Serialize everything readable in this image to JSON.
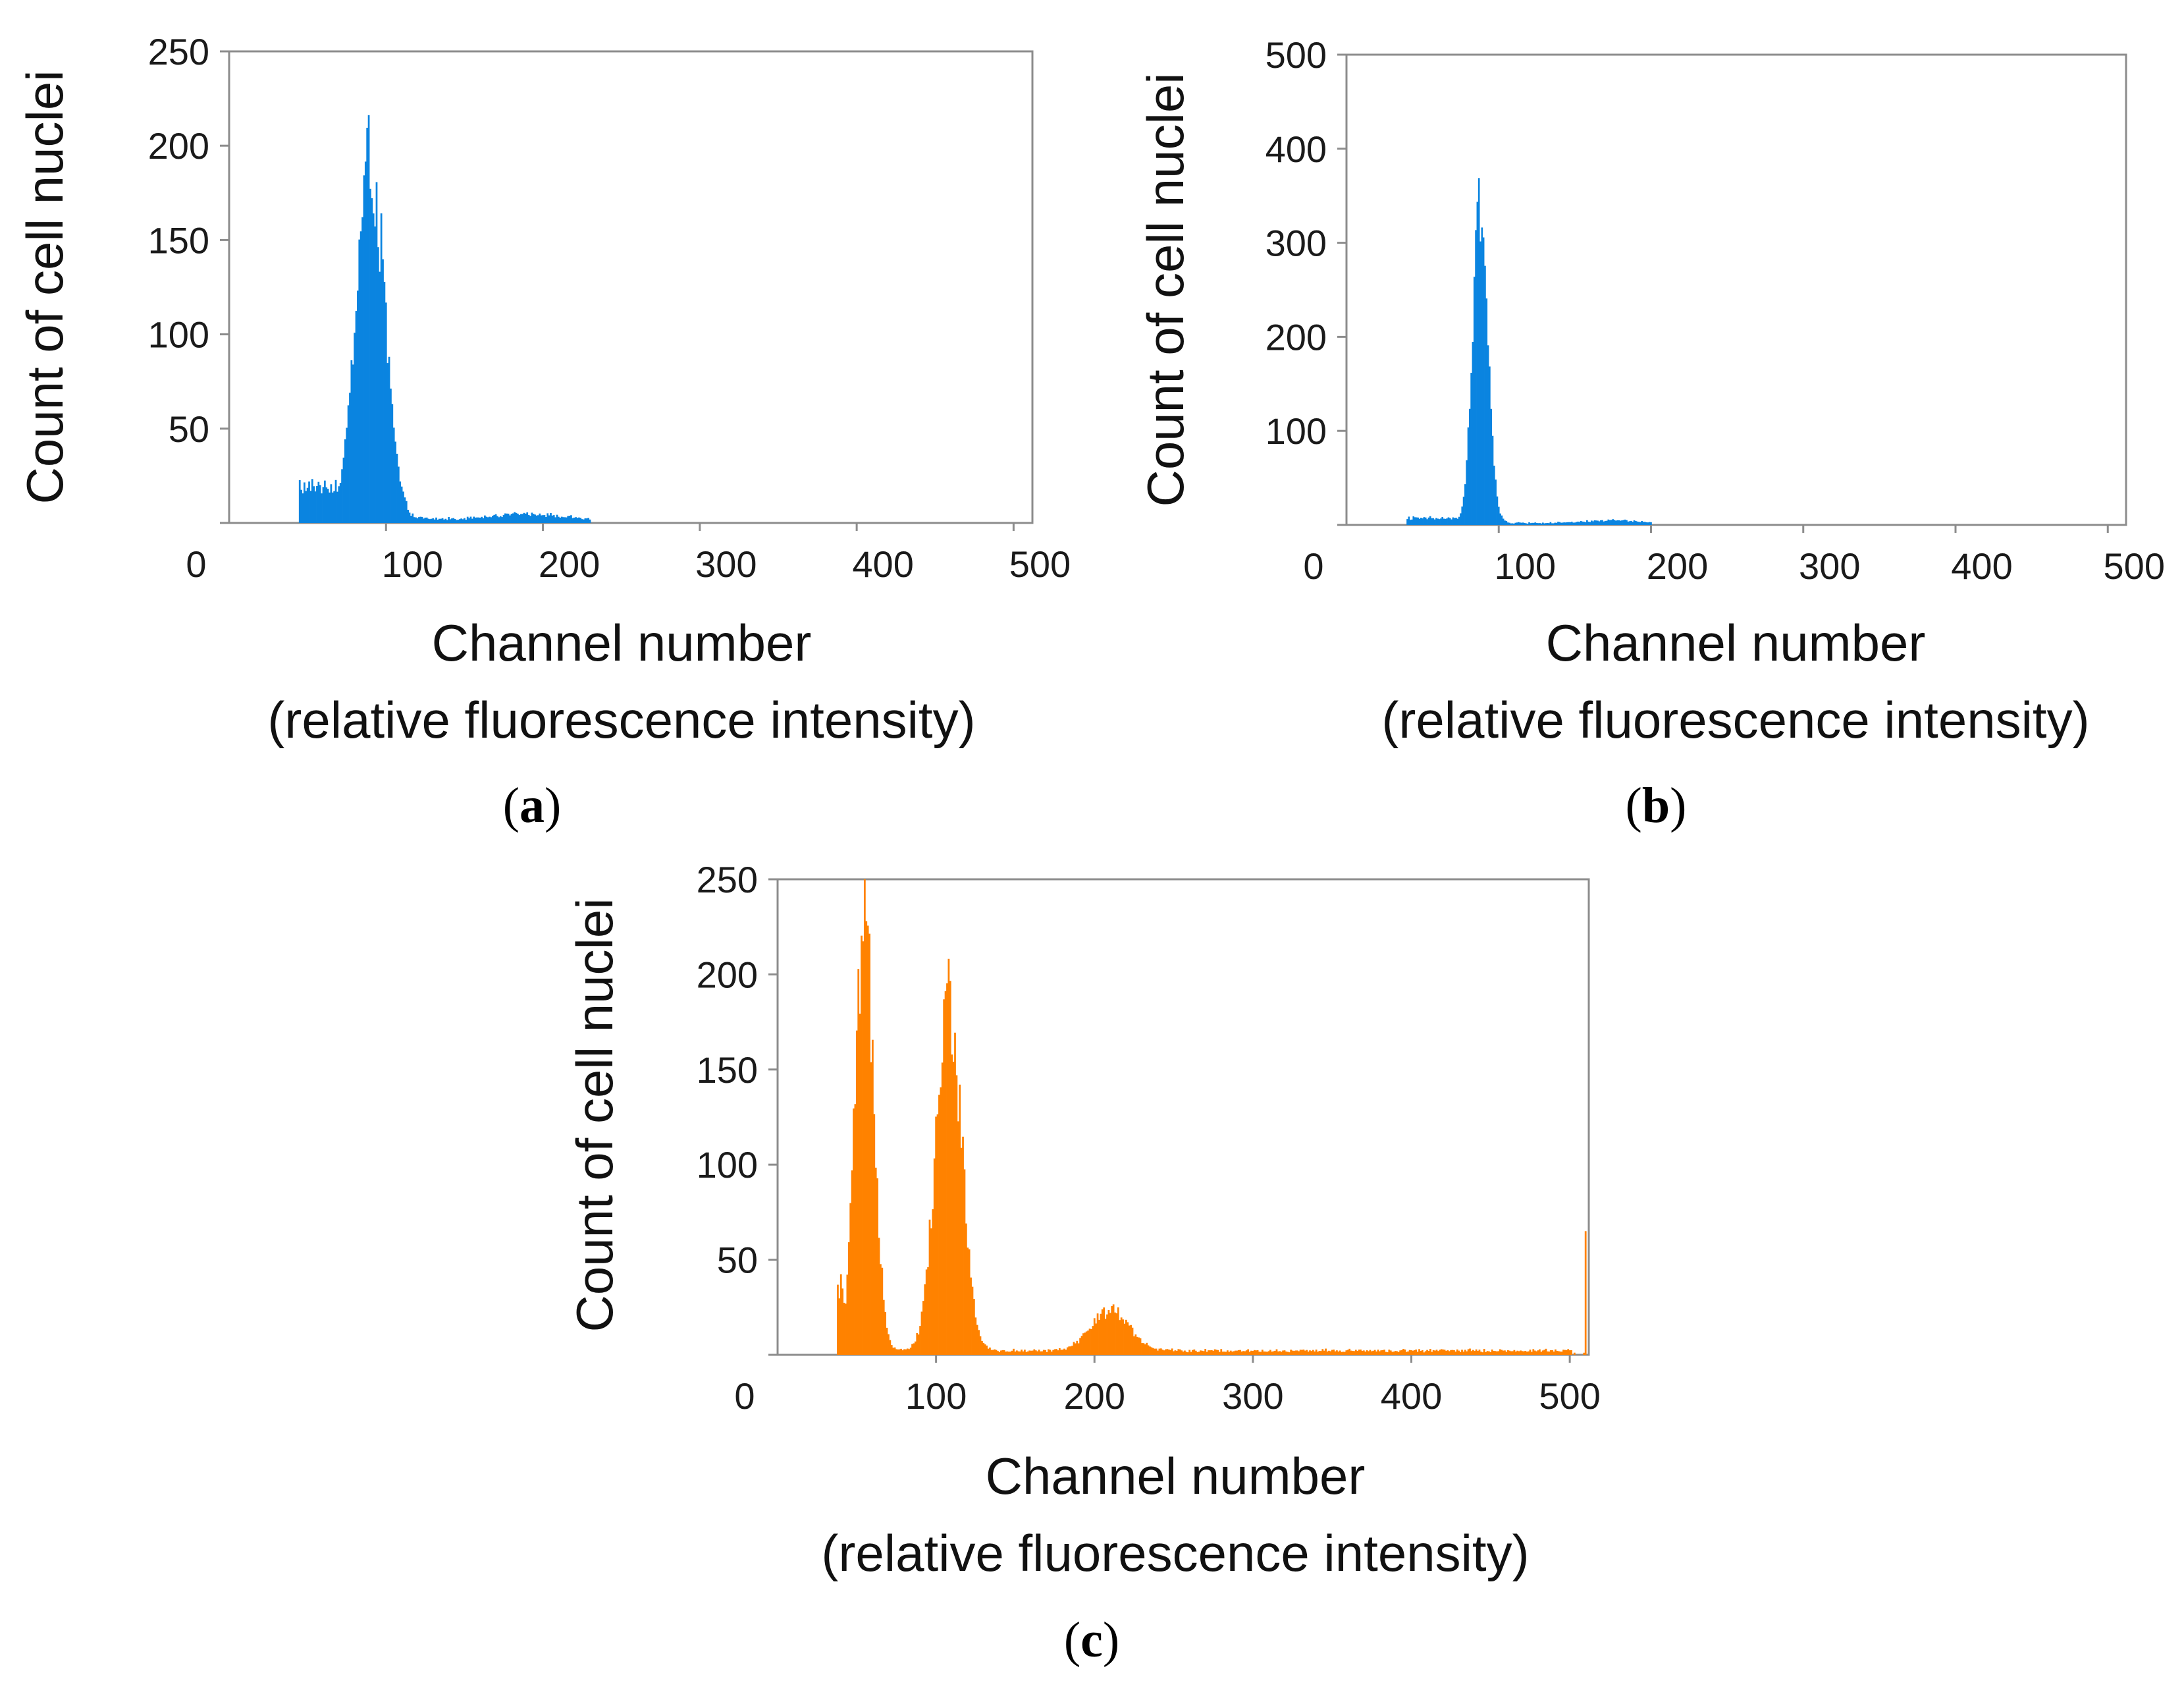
{
  "figure_panels": [
    "a",
    "b",
    "c"
  ],
  "chart_data": [
    {
      "panel": "a",
      "type": "histogram",
      "xlabel": "Channel number",
      "xlabel_line2": "(relative fluorescence intensity)",
      "ylabel": "Count of cell nuclei",
      "xlim": [
        0,
        512
      ],
      "ylim": [
        0,
        250
      ],
      "x_ticks": [
        "0",
        "100",
        "200",
        "300",
        "400",
        "500"
      ],
      "y_ticks": [
        "50",
        "100",
        "150",
        "200",
        "250"
      ],
      "color": "#0a84e0",
      "peaks": [
        {
          "channel": 90,
          "count": 195,
          "sigma": 9
        },
        {
          "channel": 188,
          "count": 3,
          "sigma": 18
        }
      ],
      "baseline": {
        "from": 45,
        "to": 75,
        "count": 18
      },
      "tail_to": 230
    },
    {
      "panel": "b",
      "type": "histogram",
      "xlabel": "Channel number",
      "xlabel_line2": "(relative fluorescence intensity)",
      "ylabel": "Count of cell nuclei",
      "xlim": [
        0,
        512
      ],
      "ylim": [
        0,
        500
      ],
      "x_ticks": [
        "0",
        "100",
        "200",
        "300",
        "400",
        "500"
      ],
      "y_ticks": [
        "100",
        "200",
        "300",
        "400",
        "500"
      ],
      "color": "#0a84e0",
      "peaks": [
        {
          "channel": 88,
          "count": 340,
          "sigma": 5
        },
        {
          "channel": 175,
          "count": 3,
          "sigma": 15
        }
      ],
      "baseline": {
        "from": 40,
        "to": 75,
        "count": 5
      },
      "tail_to": 200
    },
    {
      "panel": "c",
      "type": "histogram",
      "xlabel": "Channel number",
      "xlabel_line2": "(relative fluorescence intensity)",
      "ylabel": "Count of cell nuclei",
      "xlim": [
        0,
        512
      ],
      "ylim": [
        0,
        250
      ],
      "x_ticks": [
        "0",
        "100",
        "200",
        "300",
        "400",
        "500"
      ],
      "y_ticks": [
        "50",
        "100",
        "150",
        "200",
        "250"
      ],
      "color": "#ff8200",
      "peaks": [
        {
          "channel": 55,
          "count": 225,
          "sigma": 6
        },
        {
          "channel": 108,
          "count": 190,
          "sigma": 8
        },
        {
          "channel": 210,
          "count": 22,
          "sigma": 12
        }
      ],
      "baseline": {
        "from": 38,
        "to": 48,
        "count": 30
      },
      "end_spike": {
        "channel": 510,
        "count": 65
      },
      "tail_to": 500
    }
  ]
}
